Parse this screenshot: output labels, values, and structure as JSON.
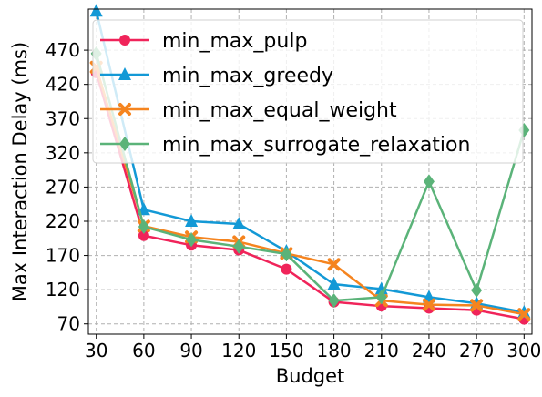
{
  "chart_data": {
    "type": "line",
    "title": "",
    "xlabel": "Budget",
    "ylabel": "Max Interaction Delay (ms)",
    "x": [
      30,
      60,
      90,
      120,
      150,
      180,
      210,
      240,
      270,
      300
    ],
    "x_ticks": [
      "30",
      "60",
      "90",
      "120",
      "150",
      "180",
      "210",
      "240",
      "270",
      "300"
    ],
    "y_ticks": [
      "70",
      "120",
      "170",
      "220",
      "270",
      "320",
      "370",
      "420",
      "470"
    ],
    "ylim": [
      55,
      530
    ],
    "grid": true,
    "legend_position": "top-left",
    "series": [
      {
        "name": "min_max_pulp",
        "color": "#f0245a",
        "marker": "circle",
        "values": [
          437,
          199,
          185,
          178,
          150,
          102,
          96,
          93,
          90,
          77
        ]
      },
      {
        "name": "min_max_greedy",
        "color": "#1399d6",
        "marker": "triangle",
        "values": [
          527,
          237,
          220,
          216,
          176,
          128,
          121,
          109,
          100,
          87
        ]
      },
      {
        "name": "min_max_equal_weight",
        "color": "#f5841f",
        "marker": "x",
        "values": [
          445,
          213,
          197,
          190,
          173,
          157,
          104,
          98,
          97,
          84
        ]
      },
      {
        "name": "min_max_surrogate_relaxation",
        "color": "#5bb379",
        "marker": "diamond",
        "values": [
          465,
          212,
          193,
          183,
          172,
          104,
          109,
          278,
          119,
          353
        ]
      }
    ]
  }
}
